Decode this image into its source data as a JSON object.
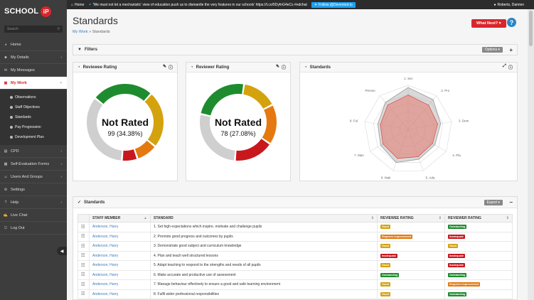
{
  "topbar": {
    "home_label": "Home",
    "tweet": "'We must not let a mechanistic' view of education push us to dismantle the very features in our schools' https://t.co/5DyfnG4eCs #edchat",
    "follow_label": "Follow @Devented.io",
    "user_label": "Roberts, Damien"
  },
  "sidebar": {
    "logo_text": "SCHOOL",
    "logo_badge": "iP",
    "search_placeholder": "Search",
    "items": [
      {
        "label": "Home",
        "icon": "gauge-icon"
      },
      {
        "label": "My Details",
        "icon": "person-icon"
      },
      {
        "label": "My Messages",
        "icon": "envelope-icon"
      },
      {
        "label": "My Work",
        "icon": "folder-icon"
      },
      {
        "label": "CPD",
        "icon": "book-icon"
      },
      {
        "label": "Self-Evaluation Forms",
        "icon": "form-icon"
      },
      {
        "label": "Users And Groups",
        "icon": "users-icon"
      },
      {
        "label": "Settings",
        "icon": "gear-icon"
      },
      {
        "label": "Help",
        "icon": "help-icon"
      },
      {
        "label": "Live Chat",
        "icon": "chat-icon"
      },
      {
        "label": "Log Out",
        "icon": "logout-icon"
      }
    ],
    "subitems": [
      "Observations",
      "Staff Objectives",
      "Standards",
      "Pay Progression",
      "Development Plan"
    ]
  },
  "main": {
    "title": "Standards",
    "breadcrumb_link": "My Work",
    "breadcrumb_sep": "»",
    "breadcrumb_current": "Standards",
    "what_next": "What Next?",
    "help": "?"
  },
  "filters": {
    "title": "Filters",
    "options_label": "Options"
  },
  "reviewee": {
    "title": "Reviewee Rating",
    "status": "Not Rated",
    "count": "99 (34.38%)"
  },
  "reviewer": {
    "title": "Reviewer Rating",
    "status": "Not Rated",
    "count": "78 (27.08%)"
  },
  "radar": {
    "title": "Standards",
    "axes": [
      "1. Set",
      "2. Pro",
      "3. Dem",
      "4. Pla",
      "5. Ada",
      "6. Mak",
      "7. Man",
      "8. Ful",
      "Person"
    ]
  },
  "standards_table": {
    "title": "Standards",
    "export_label": "Export",
    "headers": [
      "STAFF MEMBER",
      "STANDARD",
      "REVIEWEE RATING",
      "REVIEWER RATING"
    ],
    "rows": [
      {
        "name": "Anderson, Harry",
        "standard": "1. Set high expectations which inspire, motivate and challenge pupils",
        "reviewee": "Good",
        "reviewer": "Outstanding"
      },
      {
        "name": "Anderson, Harry",
        "standard": "2. Promote good progress and outcomes by pupils",
        "reviewee": "Requires Improvement",
        "reviewer": "Inadequate"
      },
      {
        "name": "Anderson, Harry",
        "standard": "3. Demonstrate good subject and curriculum knowledge",
        "reviewee": "Good",
        "reviewer": "Good"
      },
      {
        "name": "Anderson, Harry",
        "standard": "4. Plan and teach well structured lessons",
        "reviewee": "Inadequate",
        "reviewer": "Inadequate"
      },
      {
        "name": "Anderson, Harry",
        "standard": "5. Adapt teaching to respond to the strengths and needs of all pupils",
        "reviewee": "Good",
        "reviewer": "Inadequate"
      },
      {
        "name": "Anderson, Harry",
        "standard": "6. Make accurate and productive use of assessment",
        "reviewee": "Outstanding",
        "reviewer": "Outstanding"
      },
      {
        "name": "Anderson, Harry",
        "standard": "7. Manage behaviour effectively to ensure a good and safe learning environment",
        "reviewee": "Good",
        "reviewer": "Requires Improvement"
      },
      {
        "name": "Anderson, Harry",
        "standard": "8. Fulfil wider professional responsibilities",
        "reviewee": "Good",
        "reviewer": "Outstanding"
      }
    ]
  },
  "chart_data": [
    {
      "type": "pie",
      "title": "Reviewee Rating",
      "categories": [
        "Not Rated",
        "Outstanding",
        "Good",
        "Requires Improvement",
        "Inadequate"
      ],
      "values": [
        34.38,
        26,
        24,
        9,
        6.62
      ],
      "colors": [
        "#cfcfcf",
        "#1e8c2e",
        "#d4a20c",
        "#e47911",
        "#c8181e"
      ]
    },
    {
      "type": "pie",
      "title": "Reviewer Rating",
      "categories": [
        "Not Rated",
        "Outstanding",
        "Good",
        "Requires Improvement",
        "Inadequate"
      ],
      "values": [
        27.08,
        24,
        15,
        17,
        16.92
      ],
      "colors": [
        "#cfcfcf",
        "#1e8c2e",
        "#d4a20c",
        "#e47911",
        "#c8181e"
      ]
    }
  ]
}
